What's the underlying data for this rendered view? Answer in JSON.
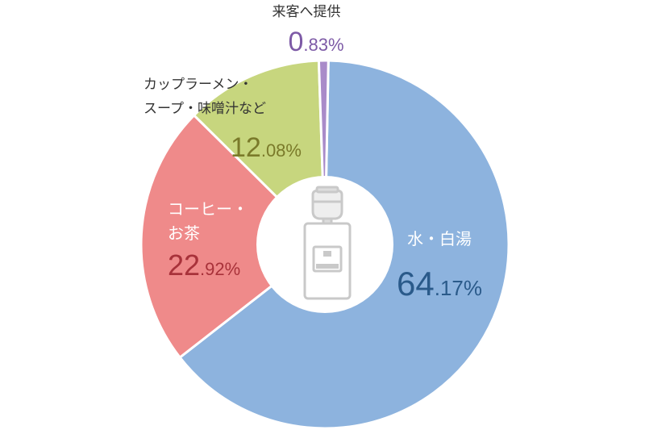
{
  "chart_data": {
    "type": "donut",
    "title": "",
    "unit": "%",
    "series": [
      {
        "name": "水・白湯",
        "value": 64.17,
        "int": "64",
        "dec": ".17",
        "color": "#8db3de",
        "text_color": "#2a5a8a"
      },
      {
        "name": "コーヒー・お茶",
        "name_lines": [
          "コーヒー・",
          "お茶"
        ],
        "value": 22.92,
        "int": "22",
        "dec": ".92",
        "color": "#ef8a8a",
        "text_color": "#a8323a"
      },
      {
        "name": "カップラーメン・スープ・味噌汁など",
        "name_lines": [
          "カップラーメン・",
          "スープ・味噌汁など"
        ],
        "value": 12.08,
        "int": "12",
        "dec": ".08",
        "color": "#c7d67e",
        "text_color": "#7a7a2a"
      },
      {
        "name": "来客へ提供",
        "value": 0.83,
        "int": "0",
        "dec": ".83",
        "color": "#a98bc9",
        "text_color": "#7d5aa6"
      }
    ],
    "center_icon": "water-dispenser-icon"
  }
}
